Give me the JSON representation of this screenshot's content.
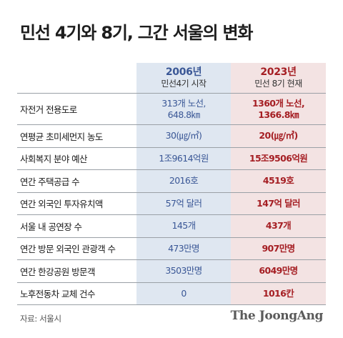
{
  "title": "민선 4기와 8기, 그간 서울의 변화",
  "columns": [
    {
      "year": "2006년",
      "sub": "민선4기 시작"
    },
    {
      "year": "2023년",
      "sub": "민선 8기 현재"
    }
  ],
  "rows": [
    {
      "label": "자전거 전용도로",
      "a": [
        "313개 노선,",
        "648.8㎞"
      ],
      "b": [
        "1360개 노선,",
        "1366.8㎞"
      ]
    },
    {
      "label": "연평균 초미세먼지 농도",
      "a": [
        "30(㎍/㎥)"
      ],
      "b": [
        "20(㎍/㎥)"
      ]
    },
    {
      "label": "사회복지 분야 예산",
      "a": [
        "1조9614억원"
      ],
      "b": [
        "15조9506억원"
      ]
    },
    {
      "label": "연간 주택공급 수",
      "a": [
        "2016호"
      ],
      "b": [
        "4519호"
      ]
    },
    {
      "label": "연간 외국인 투자유치액",
      "a": [
        "57억 달러"
      ],
      "b": [
        "147억 달러"
      ]
    },
    {
      "label": "서울 내 공연장 수",
      "a": [
        "145개"
      ],
      "b": [
        "437개"
      ]
    },
    {
      "label": "연간 방문 외국인 관광객 수",
      "a": [
        "473만명"
      ],
      "b": [
        "907만명"
      ]
    },
    {
      "label": "연간 한강공원 방문객",
      "a": [
        "3503만명"
      ],
      "b": [
        "6049만명"
      ]
    },
    {
      "label": "노후전동차 교체 건수",
      "a": [
        "0"
      ],
      "b": [
        "1016칸"
      ]
    }
  ],
  "source": "자료: 서울시",
  "brand": "The JoongAng",
  "colors": {
    "col_a_bg": "#dfe7f1",
    "col_b_bg": "#f3e3e3",
    "col_a_text": "#3a5796",
    "col_b_text": "#a51e23"
  }
}
